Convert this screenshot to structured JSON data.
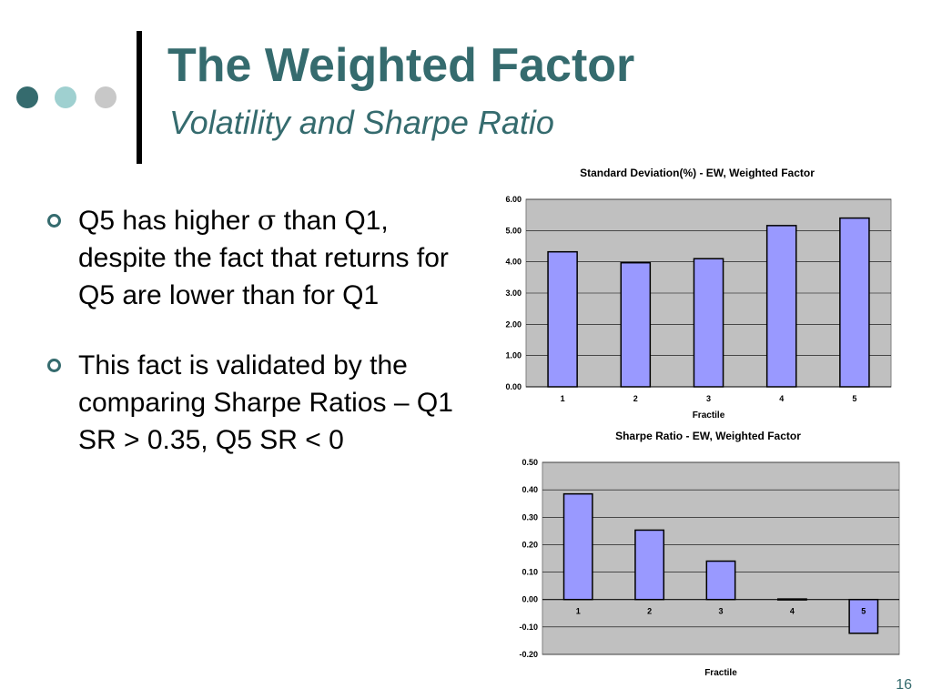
{
  "slide": {
    "title": "The Weighted Factor",
    "subtitle": "Volatility and Sharpe Ratio",
    "page_number": "16",
    "accent_color": "#356b6e",
    "decor_dot_colors": [
      "#356b6e",
      "#9fd0d0",
      "#c8c8c8"
    ]
  },
  "bullets": [
    {
      "pre": "Q5 has higher ",
      "symbol": "σ",
      "post": " than Q1, despite the fact that returns for Q5 are lower than for Q1"
    },
    {
      "pre": "This fact is validated by the comparing Sharpe Ratios – Q1 SR > 0.35, Q5 SR < 0",
      "symbol": "",
      "post": ""
    }
  ],
  "chart_data": [
    {
      "type": "bar",
      "title": "Standard Deviation(%) - EW, Weighted Factor",
      "xlabel": "Fractile",
      "ylabel": "",
      "categories": [
        "1",
        "2",
        "3",
        "4",
        "5"
      ],
      "values": [
        4.32,
        3.97,
        4.1,
        5.16,
        5.4
      ],
      "ylim": [
        0,
        6
      ],
      "yticks": [
        "0.00",
        "1.00",
        "2.00",
        "3.00",
        "4.00",
        "5.00",
        "6.00"
      ],
      "grid": true,
      "bar_color": "#9999ff",
      "plot_bg": "#c0c0c0"
    },
    {
      "type": "bar",
      "title": "Sharpe Ratio - EW, Weighted Factor",
      "xlabel": "Fractile",
      "ylabel": "",
      "categories": [
        "1",
        "2",
        "3",
        "4",
        "5"
      ],
      "values": [
        0.385,
        0.253,
        0.14,
        0.002,
        -0.123
      ],
      "ylim": [
        -0.2,
        0.5
      ],
      "yticks": [
        "-0.20",
        "-0.10",
        "0.00",
        "0.10",
        "0.20",
        "0.30",
        "0.40",
        "0.50"
      ],
      "grid": true,
      "bar_color": "#9999ff",
      "plot_bg": "#c0c0c0"
    }
  ]
}
